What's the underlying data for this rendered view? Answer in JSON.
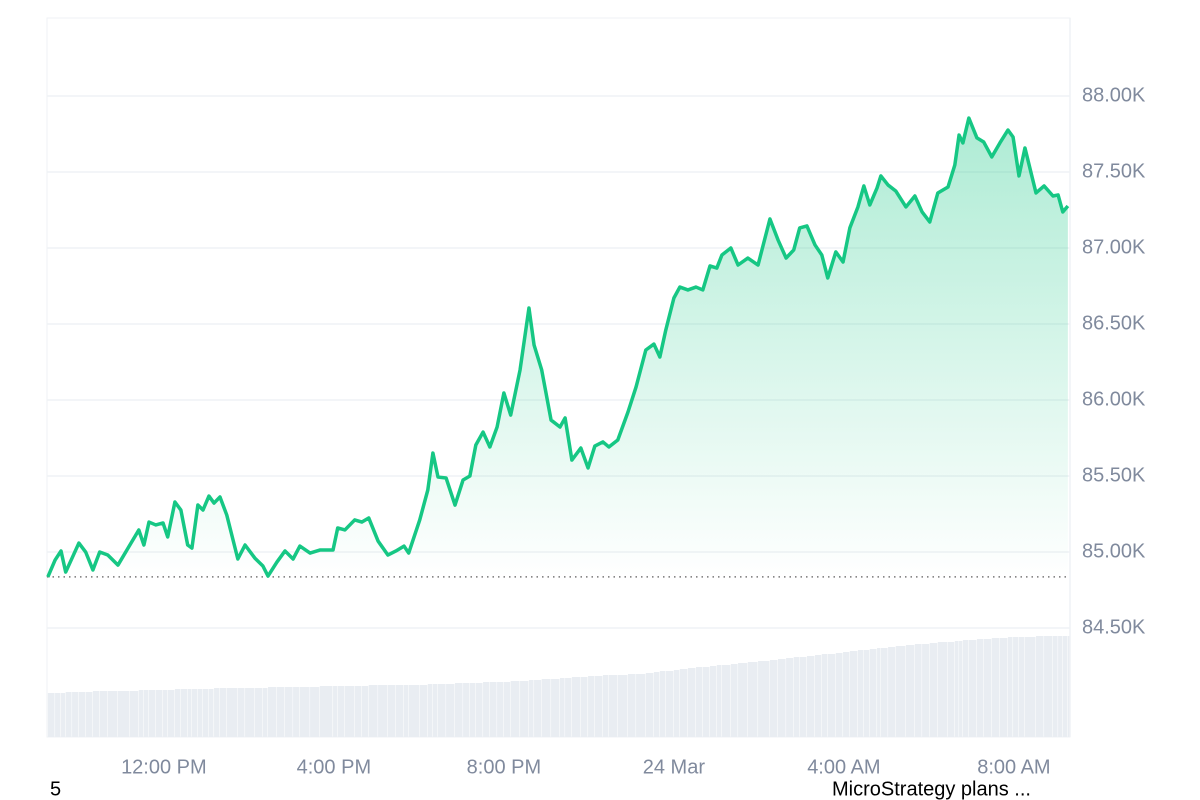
{
  "chart_data": {
    "type": "area",
    "x": [
      9.27,
      9.44,
      9.58,
      9.69,
      9.84,
      10.0,
      10.16,
      10.33,
      10.49,
      10.68,
      10.92,
      11.2,
      11.41,
      11.53,
      11.65,
      11.81,
      11.98,
      12.09,
      12.26,
      12.4,
      12.56,
      12.66,
      12.8,
      12.92,
      13.06,
      13.18,
      13.32,
      13.48,
      13.74,
      13.91,
      14.14,
      14.33,
      14.45,
      14.66,
      14.85,
      15.04,
      15.2,
      15.44,
      15.67,
      15.98,
      16.09,
      16.26,
      16.49,
      16.66,
      16.82,
      17.04,
      17.27,
      17.46,
      17.65,
      17.76,
      18.02,
      18.21,
      18.33,
      18.45,
      18.64,
      18.85,
      19.04,
      19.2,
      19.34,
      19.51,
      19.67,
      19.84,
      20.0,
      20.16,
      20.38,
      20.59,
      20.71,
      20.89,
      21.11,
      21.32,
      21.44,
      21.6,
      21.81,
      21.98,
      22.14,
      22.33,
      22.47,
      22.68,
      22.92,
      23.11,
      23.34,
      23.53,
      23.67,
      23.81,
      24.0,
      24.14,
      24.33,
      24.52,
      24.68,
      24.85,
      25.01,
      25.13,
      25.34,
      25.51,
      25.74,
      25.98,
      26.26,
      26.45,
      26.64,
      26.82,
      26.96,
      27.13,
      27.32,
      27.48,
      27.62,
      27.81,
      27.98,
      28.14,
      28.33,
      28.47,
      28.61,
      28.78,
      28.87,
      29.04,
      29.22,
      29.46,
      29.67,
      29.84,
      30.02,
      30.21,
      30.45,
      30.61,
      30.71,
      30.8,
      30.94,
      31.13,
      31.29,
      31.48,
      31.67,
      31.86,
      31.98,
      32.12,
      32.26,
      32.52,
      32.71,
      32.92,
      33.04,
      33.15,
      33.27
    ],
    "series": [
      {
        "color": "#16c784",
        "values": [
          84836,
          84947,
          85007,
          84868,
          84960,
          85059,
          85000,
          84882,
          85000,
          84980,
          84914,
          85046,
          85145,
          85046,
          85197,
          85178,
          85191,
          85099,
          85329,
          85276,
          85046,
          85026,
          85309,
          85276,
          85368,
          85322,
          85362,
          85243,
          84954,
          85046,
          84960,
          84908,
          84842,
          84934,
          85007,
          84954,
          85039,
          84993,
          85013,
          85013,
          85158,
          85145,
          85211,
          85197,
          85224,
          85072,
          84980,
          85007,
          85039,
          84993,
          85211,
          85408,
          85651,
          85493,
          85487,
          85309,
          85474,
          85500,
          85704,
          85789,
          85691,
          85822,
          86046,
          85901,
          86197,
          86605,
          86362,
          86197,
          85868,
          85822,
          85882,
          85605,
          85684,
          85553,
          85697,
          85724,
          85691,
          85737,
          85921,
          86086,
          86329,
          86368,
          86283,
          86461,
          86671,
          86743,
          86724,
          86743,
          86724,
          86882,
          86868,
          86954,
          87000,
          86888,
          86934,
          86888,
          87191,
          87053,
          86934,
          86987,
          87132,
          87145,
          87020,
          86954,
          86803,
          86974,
          86908,
          87132,
          87270,
          87408,
          87283,
          87395,
          87474,
          87414,
          87375,
          87270,
          87342,
          87237,
          87171,
          87362,
          87401,
          87546,
          87743,
          87691,
          87855,
          87724,
          87697,
          87599,
          87691,
          87776,
          87730,
          87474,
          87658,
          87362,
          87408,
          87342,
          87349,
          87237,
          87276
        ]
      }
    ],
    "volume": {
      "color": "#e9edf2",
      "ylim": [
        0,
        101
      ],
      "values": [
        44,
        44,
        44,
        45,
        45,
        45,
        45,
        46,
        46,
        46,
        46,
        46,
        47,
        47,
        47,
        47,
        47,
        47,
        48,
        48,
        48,
        48,
        48,
        48,
        48,
        49,
        49,
        49,
        49,
        49,
        49,
        49,
        50,
        50,
        50,
        50,
        50,
        50,
        51,
        51,
        51,
        51,
        51,
        51,
        52,
        52,
        52,
        52,
        52,
        52,
        52,
        53,
        53,
        53,
        53,
        54,
        54,
        54,
        54,
        55,
        55,
        55,
        55,
        56,
        56,
        57,
        57,
        58,
        58,
        59,
        59,
        60,
        60,
        61,
        61,
        62,
        62,
        62,
        63,
        63,
        64,
        65,
        66,
        66,
        67,
        68,
        69,
        70,
        70,
        71,
        72,
        72,
        73,
        74,
        75,
        76,
        77,
        78,
        79,
        80,
        80,
        81,
        82,
        83,
        83,
        84,
        85,
        86,
        87,
        87,
        88,
        89,
        89,
        90,
        91,
        92,
        93,
        93,
        94,
        95,
        95,
        96,
        96,
        97,
        97,
        98,
        98,
        99,
        99,
        100,
        100,
        100,
        100,
        101,
        101,
        101,
        101,
        101,
        101
      ]
    },
    "baseline": 84836,
    "xlim": [
      9.25,
      33.32
    ],
    "ylim": [
      83783,
      88513
    ],
    "xticks": [
      {
        "value": 12,
        "label": "12:00 PM"
      },
      {
        "value": 16,
        "label": "4:00 PM"
      },
      {
        "value": 20,
        "label": "8:00 PM"
      },
      {
        "value": 24,
        "label": "24 Mar"
      },
      {
        "value": 28,
        "label": "4:00 AM"
      },
      {
        "value": 32,
        "label": "8:00 AM"
      }
    ],
    "yticks": [
      {
        "value": 84500,
        "label": "84.50K"
      },
      {
        "value": 85000,
        "label": "85.00K"
      },
      {
        "value": 85500,
        "label": "85.50K"
      },
      {
        "value": 86000,
        "label": "86.00K"
      },
      {
        "value": 86500,
        "label": "86.50K"
      },
      {
        "value": 87000,
        "label": "87.00K"
      },
      {
        "value": 87500,
        "label": "87.50K"
      },
      {
        "value": 88000,
        "label": "88.00K"
      }
    ],
    "grid": true,
    "annotations": [
      "5",
      "MicroStrategy plans ..."
    ]
  }
}
